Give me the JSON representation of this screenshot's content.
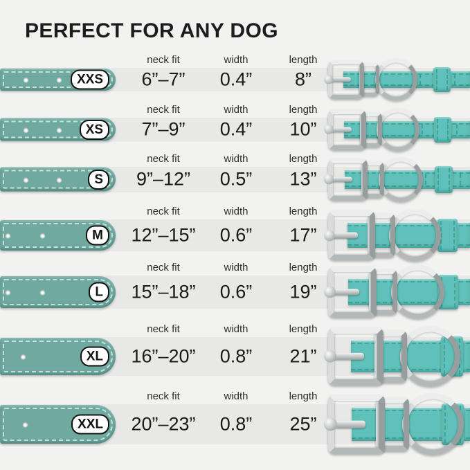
{
  "title": "PERFECT FOR ANY DOG",
  "columns": {
    "neck_fit": "neck fit",
    "width": "width",
    "length": "length"
  },
  "rows": [
    {
      "size": "XXS",
      "neck_fit": "6”–7”",
      "width": "0.4”",
      "length": "8”"
    },
    {
      "size": "XS",
      "neck_fit": "7”–9”",
      "width": "0.4”",
      "length": "10”"
    },
    {
      "size": "S",
      "neck_fit": "9”–12”",
      "width": "0.5”",
      "length": "13”"
    },
    {
      "size": "M",
      "neck_fit": "12”–15”",
      "width": "0.6”",
      "length": "17”"
    },
    {
      "size": "L",
      "neck_fit": "15”–18”",
      "width": "0.6”",
      "length": "19”"
    },
    {
      "size": "XL",
      "neck_fit": "16”–20”",
      "width": "0.8”",
      "length": "21”"
    },
    {
      "size": "XXL",
      "neck_fit": "20”–23”",
      "width": "0.8”",
      "length": "25”"
    }
  ],
  "colors": {
    "background": "#F2F2F0",
    "row_band": "#E8E8E6",
    "collar_tip": "#6FA9A0",
    "collar_strap": "#5FC1BA",
    "metal": "#C3C7C7",
    "badge_bg": "#FFFFFF",
    "badge_border": "#111111",
    "text": "#1A1A1A"
  }
}
